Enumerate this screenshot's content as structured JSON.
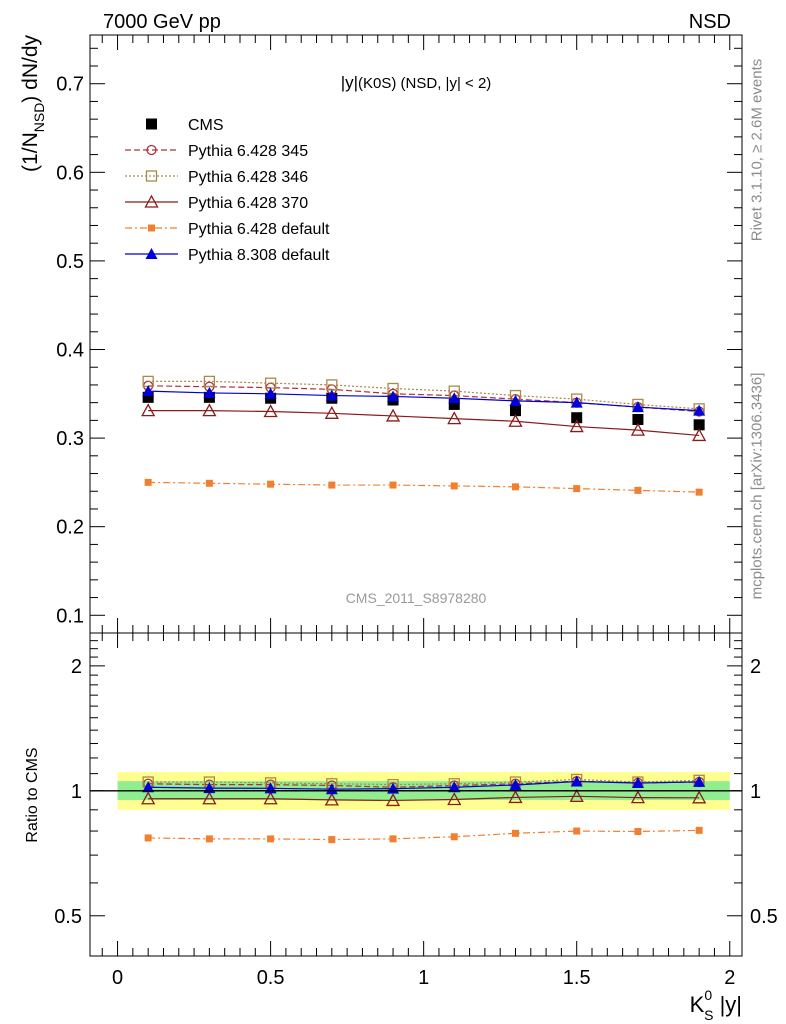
{
  "header": {
    "left": "7000 GeV pp",
    "right": "NSD"
  },
  "side_labels": {
    "rivet": "Rivet 3.1.10, ≥ 2.6M events",
    "mcplots": "mcplots.cern.ch [arXiv:1306.3436]"
  },
  "chart_data": [
    {
      "type": "line",
      "title": "|y|(K0S) (NSD, |y| < 2)",
      "title_parts": {
        "main": "|y|",
        "sub": "(K0S) (NSD, |y| < 2)"
      },
      "ylabel": "(1/N_NSD) dN/dy",
      "ylabel_parts": {
        "pre": "(1/N",
        "sub": "NSD",
        "post": ") dN/dy"
      },
      "watermark": "CMS_2011_S8978280",
      "xlim": [
        -0.09,
        2.04
      ],
      "ylim": [
        0.08,
        0.755
      ],
      "yticks": [
        0.1,
        0.2,
        0.3,
        0.4,
        0.5,
        0.6,
        0.7
      ],
      "ytick_labels": [
        "0.1",
        "0.2",
        "0.3",
        "0.4",
        "0.5",
        "0.6",
        "0.7"
      ],
      "x": [
        0.1,
        0.3,
        0.5,
        0.7,
        0.9,
        1.1,
        1.3,
        1.5,
        1.7,
        1.9
      ],
      "series": [
        {
          "name": "CMS",
          "color": "#000000",
          "marker": "square",
          "line": "none",
          "values": [
            0.346,
            0.346,
            0.345,
            0.345,
            0.343,
            0.338,
            0.331,
            0.323,
            0.321,
            0.315
          ]
        },
        {
          "name": "Pythia 6.428 345",
          "color": "#b0303a",
          "marker": "circle-open",
          "line": "dashed",
          "values": [
            0.359,
            0.358,
            0.357,
            0.355,
            0.35,
            0.348,
            0.344,
            0.34,
            0.335,
            0.33
          ]
        },
        {
          "name": "Pythia 6.428 346",
          "color": "#a88a4a",
          "marker": "square-open",
          "line": "dotted",
          "values": [
            0.364,
            0.364,
            0.362,
            0.36,
            0.356,
            0.353,
            0.348,
            0.344,
            0.338,
            0.333
          ]
        },
        {
          "name": "Pythia 6.428 370",
          "color": "#8b1a1a",
          "marker": "triangle-open",
          "line": "solid",
          "values": [
            0.331,
            0.331,
            0.33,
            0.328,
            0.325,
            0.322,
            0.319,
            0.313,
            0.309,
            0.303
          ]
        },
        {
          "name": "Pythia 6.428 default",
          "color": "#f08030",
          "marker": "square-small",
          "line": "dashdot",
          "values": [
            0.25,
            0.249,
            0.248,
            0.247,
            0.247,
            0.246,
            0.245,
            0.243,
            0.241,
            0.239
          ]
        },
        {
          "name": "Pythia 8.308 default",
          "color": "#0000d8",
          "marker": "triangle",
          "line": "solid",
          "values": [
            0.353,
            0.351,
            0.35,
            0.348,
            0.347,
            0.345,
            0.342,
            0.34,
            0.335,
            0.331
          ]
        }
      ]
    },
    {
      "type": "line",
      "ylabel": "Ratio to CMS",
      "xlabel": "K_S^0 |y|",
      "xlabel_parts": {
        "main": "K",
        "sup": "0",
        "sub": "S",
        "post": " |y|"
      },
      "xlim": [
        -0.09,
        2.04
      ],
      "ylim": [
        0.4,
        2.4
      ],
      "log_y": true,
      "xticks": [
        0,
        0.5,
        1,
        1.5,
        2
      ],
      "xtick_labels": [
        "0",
        "0.5",
        "1",
        "1.5",
        "2"
      ],
      "yticks": [
        0.5,
        1,
        2
      ],
      "ytick_labels": [
        "0.5",
        "1",
        "2"
      ],
      "bands": [
        {
          "color": "#ffff90",
          "range": [
            0.9,
            1.11
          ]
        },
        {
          "color": "#90ee90",
          "range": [
            0.95,
            1.055
          ]
        }
      ],
      "x": [
        0.1,
        0.3,
        0.5,
        0.7,
        0.9,
        1.1,
        1.3,
        1.5,
        1.7,
        1.9
      ],
      "series": [
        {
          "name": "CMS",
          "color": "#000000",
          "line": "solid",
          "values": [
            1,
            1,
            1,
            1,
            1,
            1,
            1,
            1,
            1,
            1
          ]
        },
        {
          "name": "Pythia 6.428 345",
          "color": "#b0303a",
          "marker": "circle-open",
          "line": "dashed",
          "values": [
            1.04,
            1.035,
            1.035,
            1.03,
            1.02,
            1.03,
            1.04,
            1.055,
            1.045,
            1.05
          ]
        },
        {
          "name": "Pythia 6.428 346",
          "color": "#a88a4a",
          "marker": "square-open",
          "line": "dotted",
          "values": [
            1.05,
            1.05,
            1.045,
            1.04,
            1.035,
            1.04,
            1.05,
            1.065,
            1.05,
            1.06
          ]
        },
        {
          "name": "Pythia 6.428 370",
          "color": "#8b1a1a",
          "marker": "triangle-open",
          "line": "solid",
          "values": [
            0.957,
            0.957,
            0.957,
            0.951,
            0.948,
            0.953,
            0.964,
            0.97,
            0.963,
            0.962
          ]
        },
        {
          "name": "Pythia 6.428 default",
          "color": "#f08030",
          "marker": "square-small",
          "line": "dashdot",
          "values": [
            0.77,
            0.766,
            0.766,
            0.763,
            0.766,
            0.775,
            0.79,
            0.8,
            0.798,
            0.803
          ]
        },
        {
          "name": "Pythia 8.308 default",
          "color": "#0000d8",
          "marker": "triangle",
          "line": "solid",
          "values": [
            1.02,
            1.015,
            1.014,
            1.009,
            1.012,
            1.02,
            1.033,
            1.053,
            1.044,
            1.051
          ]
        }
      ]
    }
  ]
}
